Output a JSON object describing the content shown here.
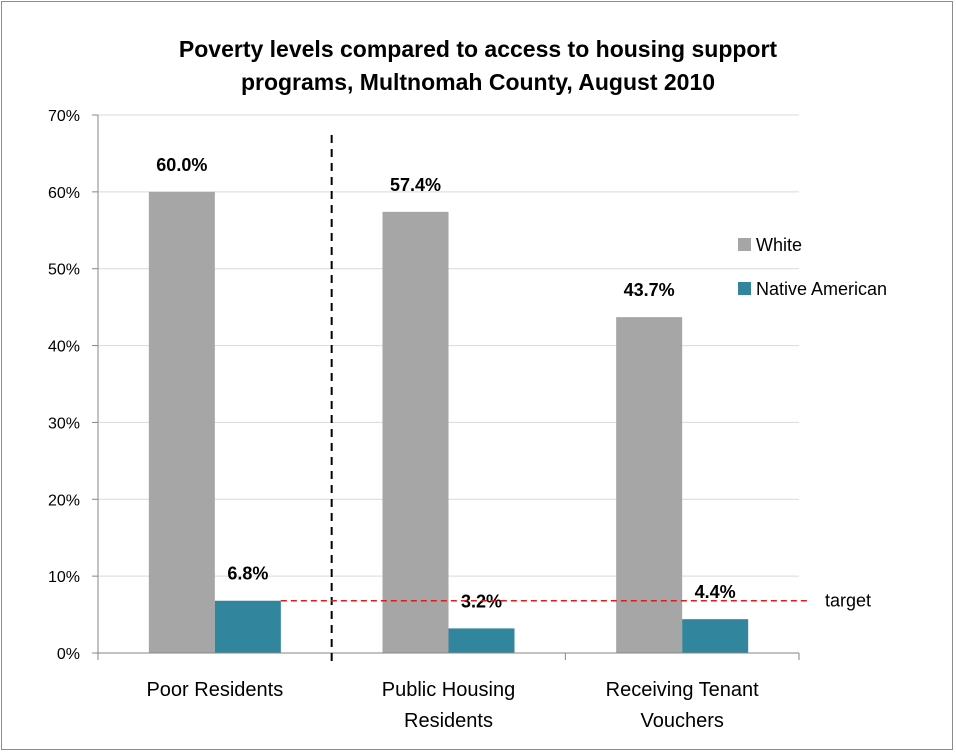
{
  "chart_data": {
    "type": "bar",
    "title": "Poverty levels compared to access to housing support programs, Multnomah County, August 2010",
    "title_lines": [
      "Poverty levels compared to access to housing support",
      "programs, Multnomah County, August 2010"
    ],
    "categories": [
      "Poor Residents",
      "Public Housing Residents",
      "Receiving Tenant Vouchers"
    ],
    "category_lines": [
      [
        "Poor Residents"
      ],
      [
        "Public Housing",
        "Residents"
      ],
      [
        "Receiving Tenant",
        "Vouchers"
      ]
    ],
    "series": [
      {
        "name": "White",
        "values": [
          60.0,
          57.4,
          43.7
        ],
        "color": "#a6a6a6",
        "labels": [
          "60.0%",
          "57.4%",
          "43.7%"
        ]
      },
      {
        "name": "Native American",
        "values": [
          6.8,
          3.2,
          4.4
        ],
        "color": "#31859c",
        "labels": [
          "6.8%",
          "3.2%",
          "4.4%"
        ]
      }
    ],
    "ylim": [
      0,
      70
    ],
    "yticks": [
      0,
      10,
      20,
      30,
      40,
      50,
      60,
      70
    ],
    "ytick_labels": [
      "0%",
      "10%",
      "20%",
      "30%",
      "40%",
      "50%",
      "60%",
      "70%"
    ],
    "grid": true,
    "legend_position": "right",
    "target": {
      "value": 6.8,
      "label": "target",
      "color": "#e31a1c"
    },
    "separator": {
      "after_category": 0
    }
  }
}
